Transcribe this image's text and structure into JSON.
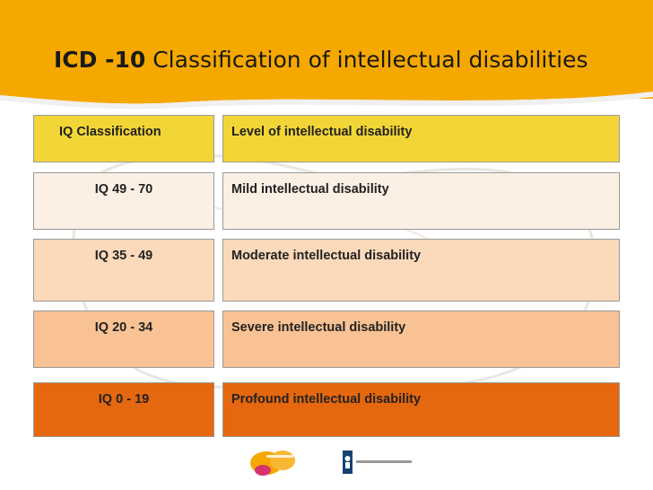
{
  "slide": {
    "title_bold": "ICD -10",
    "title_rest": " Classification of intellectual disabilities"
  },
  "table": {
    "header": {
      "left": "IQ Classification",
      "right": "Level of intellectual disability",
      "color": "#f2d637"
    },
    "rows": [
      {
        "iq": "IQ 49 - 70",
        "level": "Mild intellectual disability",
        "color": "#fcefe3"
      },
      {
        "iq": "IQ 35 - 49",
        "level": "Moderate intellectual disability",
        "color": "#fbd9bb"
      },
      {
        "iq": "IQ 20 - 34",
        "level": "Severe intellectual disability",
        "color": "#f9c294"
      },
      {
        "iq": "IQ 0 - 19",
        "level": "Profound intellectual disability",
        "color": "#e5670f"
      }
    ]
  },
  "colors": {
    "header_band": "#f5a800",
    "background": "#ffffff"
  }
}
